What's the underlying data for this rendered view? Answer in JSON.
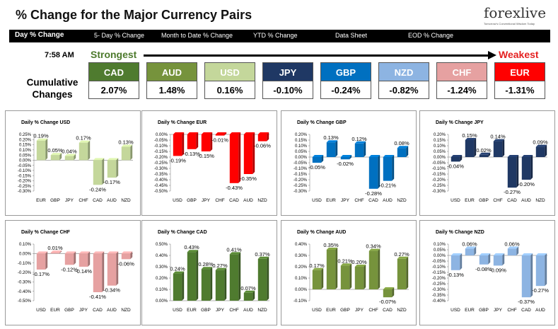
{
  "header": {
    "title": "% Change for the Major Currency Pairs",
    "logo_text": "forexlive",
    "logo_tagline": "Tomorrow's Conventional Wisdom Today"
  },
  "nav": {
    "items": [
      {
        "label": "Day % Change",
        "active": true
      },
      {
        "label": "5- Day % Change",
        "active": false
      },
      {
        "label": "Month to Date % Change",
        "active": false
      },
      {
        "label": "YTD % Change",
        "active": false
      },
      {
        "label": "Data Sheet",
        "active": false
      },
      {
        "label": "EOD % Change",
        "active": false
      }
    ]
  },
  "summary": {
    "time": "7:58 AM",
    "strongest_label": "Strongest",
    "weakest_label": "Weakest",
    "cumulative_label_line1": "Cumulative",
    "cumulative_label_line2": "Changes",
    "currencies": [
      {
        "code": "CAD",
        "value": "2.07%",
        "color": "#4f7b2f"
      },
      {
        "code": "AUD",
        "value": "1.48%",
        "color": "#76933c"
      },
      {
        "code": "USD",
        "value": "0.16%",
        "color": "#c4d79b"
      },
      {
        "code": "JPY",
        "value": "-0.10%",
        "color": "#1f3864"
      },
      {
        "code": "GBP",
        "value": "-0.24%",
        "color": "#0070c0"
      },
      {
        "code": "NZD",
        "value": "-0.82%",
        "color": "#8db4e2"
      },
      {
        "code": "CHF",
        "value": "-1.24%",
        "color": "#e6a1a1"
      },
      {
        "code": "EUR",
        "value": "-1.31%",
        "color": "#ff0000"
      }
    ]
  },
  "chart_data": [
    {
      "type": "bar",
      "title": "Daily % Change USD",
      "categories": [
        "EUR",
        "GBP",
        "JPY",
        "CHF",
        "CAD",
        "AUD",
        "NZD"
      ],
      "values": [
        0.19,
        0.05,
        0.04,
        0.17,
        -0.24,
        -0.17,
        0.13
      ],
      "data_labels": [
        "0.19%",
        "0.05%",
        "0.04%",
        "0.17%",
        "-0.24%",
        "-0.17%",
        "0.13%"
      ],
      "ylim": [
        -0.3,
        0.25
      ],
      "yticks": [
        "0.25%",
        "0.20%",
        "0.15%",
        "0.10%",
        "0.05%",
        "0.00%",
        "-0.05%",
        "-0.10%",
        "-0.15%",
        "-0.20%",
        "-0.25%",
        "-0.30%"
      ],
      "color": "#c4d79b"
    },
    {
      "type": "bar",
      "title": "Daily % Change EUR",
      "categories": [
        "USD",
        "GBP",
        "JPY",
        "CHF",
        "CAD",
        "AUD",
        "NZD"
      ],
      "values": [
        -0.19,
        -0.13,
        -0.15,
        -0.01,
        -0.43,
        -0.35,
        -0.06
      ],
      "data_labels": [
        "-0.19%",
        "-0.13%",
        "-0.15%",
        "-0.01%",
        "-0.43%",
        "-0.35%",
        "-0.06%"
      ],
      "ylim": [
        -0.5,
        0.0
      ],
      "yticks": [
        "0.00%",
        "-0.05%",
        "-0.10%",
        "-0.15%",
        "-0.20%",
        "-0.25%",
        "-0.30%",
        "-0.35%",
        "-0.40%",
        "-0.45%",
        "-0.50%"
      ],
      "color": "#ff0000"
    },
    {
      "type": "bar",
      "title": "Daily % Change GBP",
      "categories": [
        "USD",
        "EUR",
        "JPY",
        "CHF",
        "CAD",
        "AUD",
        "NZD"
      ],
      "values": [
        -0.05,
        0.13,
        -0.02,
        0.12,
        -0.28,
        -0.21,
        0.08
      ],
      "data_labels": [
        "-0.05%",
        "0.13%",
        "-0.02%",
        "0.12%",
        "-0.28%",
        "-0.21%",
        "0.08%"
      ],
      "ylim": [
        -0.3,
        0.2
      ],
      "yticks": [
        "0.20%",
        "0.15%",
        "0.10%",
        "0.05%",
        "0.00%",
        "-0.05%",
        "-0.10%",
        "-0.15%",
        "-0.20%",
        "-0.25%",
        "-0.30%"
      ],
      "color": "#0070c0"
    },
    {
      "type": "bar",
      "title": "Daily % Change JPY",
      "categories": [
        "USD",
        "EUR",
        "GBP",
        "CHF",
        "CAD",
        "AUD",
        "NZD"
      ],
      "values": [
        -0.04,
        0.15,
        0.02,
        0.14,
        -0.27,
        -0.2,
        0.09
      ],
      "data_labels": [
        "-0.04%",
        "0.15%",
        "0.02%",
        "0.14%",
        "-0.27%",
        "-0.20%",
        "0.09%"
      ],
      "ylim": [
        -0.3,
        0.2
      ],
      "yticks": [
        "0.20%",
        "0.15%",
        "0.10%",
        "0.05%",
        "0.00%",
        "-0.05%",
        "-0.10%",
        "-0.15%",
        "-0.20%",
        "-0.25%",
        "-0.30%"
      ],
      "color": "#1f3864"
    },
    {
      "type": "bar",
      "title": "Daily % Change CHF",
      "categories": [
        "USD",
        "EUR",
        "GBP",
        "JPY",
        "CAD",
        "AUD",
        "NZD"
      ],
      "values": [
        -0.17,
        0.01,
        -0.12,
        -0.14,
        -0.41,
        -0.34,
        -0.06
      ],
      "data_labels": [
        "-0.17%",
        "0.01%",
        "-0.12%",
        "-0.14%",
        "-0.41%",
        "-0.34%",
        "-0.06%"
      ],
      "ylim": [
        -0.5,
        0.1
      ],
      "yticks": [
        "0.10%",
        "0.00%",
        "-0.10%",
        "-0.20%",
        "-0.30%",
        "-0.40%",
        "-0.50%"
      ],
      "color": "#e6a1a1"
    },
    {
      "type": "bar",
      "title": "Daily % Change CAD",
      "categories": [
        "USD",
        "EUR",
        "GBP",
        "JPY",
        "CHF",
        "AUD",
        "NZD"
      ],
      "values": [
        0.24,
        0.43,
        0.28,
        0.27,
        0.41,
        0.07,
        0.37
      ],
      "data_labels": [
        "0.24%",
        "0.43%",
        "0.28%",
        "0.27%",
        "0.41%",
        "0.07%",
        "0.37%"
      ],
      "ylim": [
        0.0,
        0.5
      ],
      "yticks": [
        "0.50%",
        "0.40%",
        "0.30%",
        "0.20%",
        "0.10%",
        "0.00%"
      ],
      "color": "#4f7b2f"
    },
    {
      "type": "bar",
      "title": "Daily % Change AUD",
      "categories": [
        "USD",
        "EUR",
        "GBP",
        "JPY",
        "CHF",
        "CAD",
        "NZD"
      ],
      "values": [
        0.17,
        0.35,
        0.21,
        0.2,
        0.34,
        -0.07,
        0.27
      ],
      "data_labels": [
        "0.17%",
        "0.35%",
        "0.21%",
        "0.20%",
        "0.34%",
        "-0.07%",
        "0.27%"
      ],
      "ylim": [
        -0.1,
        0.4
      ],
      "yticks": [
        "0.40%",
        "0.30%",
        "0.20%",
        "0.10%",
        "0.00%",
        "-0.10%"
      ],
      "color": "#76933c"
    },
    {
      "type": "bar",
      "title": "Daily % Change NZD",
      "categories": [
        "USD",
        "EUR",
        "GBP",
        "JPY",
        "CHF",
        "CAD",
        "AUD"
      ],
      "values": [
        -0.13,
        0.06,
        -0.08,
        -0.09,
        0.06,
        -0.37,
        -0.27
      ],
      "data_labels": [
        "-0.13%",
        "0.06%",
        "-0.08%",
        "-0.09%",
        "0.06%",
        "-0.37%",
        "-0.27%"
      ],
      "ylim": [
        -0.4,
        0.1
      ],
      "yticks": [
        "0.10%",
        "0.05%",
        "0.00%",
        "-0.05%",
        "-0.10%",
        "-0.15%",
        "-0.20%",
        "-0.25%",
        "-0.30%",
        "-0.35%",
        "-0.40%"
      ],
      "color": "#8db4e2"
    }
  ]
}
